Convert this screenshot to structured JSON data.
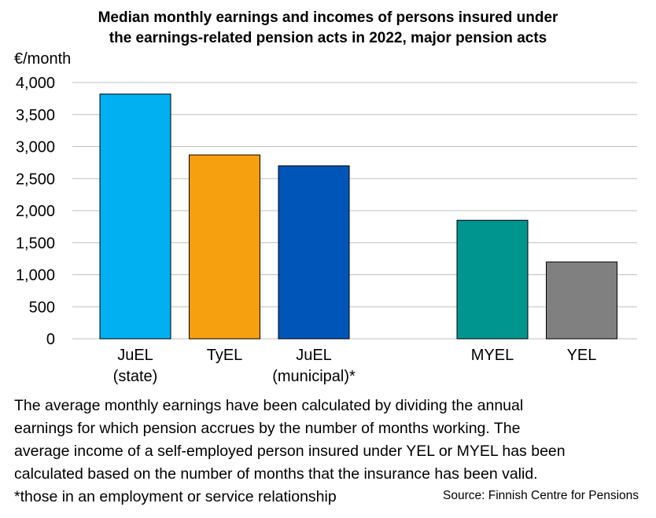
{
  "chart_data": {
    "type": "bar",
    "title": [
      "Median monthly earnings and incomes of persons insured under",
      "the earnings-related pension acts in 2022, major pension acts"
    ],
    "ylabel": "€/month",
    "ylim": [
      0,
      4000
    ],
    "yticks": [
      "0",
      "500",
      "1,000",
      "1,500",
      "2,000",
      "2,500",
      "3,000",
      "3,500",
      "4,000"
    ],
    "ytick_values": [
      0,
      500,
      1000,
      1500,
      2000,
      2500,
      3000,
      3500,
      4000
    ],
    "grid": true,
    "categories": [
      [
        "JuEL",
        "(state)"
      ],
      [
        "TyEL"
      ],
      [
        "JuEL",
        "(municipal)*"
      ],
      [
        "MYEL"
      ],
      [
        "YEL"
      ]
    ],
    "values": [
      3820,
      2870,
      2700,
      1850,
      1200
    ],
    "colors": [
      "#00b0f0",
      "#f7a00f",
      "#0055b8",
      "#00968f",
      "#808080"
    ]
  },
  "footnote": [
    "The average monthly earnings have been calculated by dividing the annual",
    "earnings for which pension accrues by the number of months working. The",
    "average income of a self-employed person insured under YEL or MYEL has been",
    "calculated based on the number of months that the insurance has been valid.",
    "*those in an employment or service relationship"
  ],
  "source": "Source: Finnish Centre for Pensions"
}
